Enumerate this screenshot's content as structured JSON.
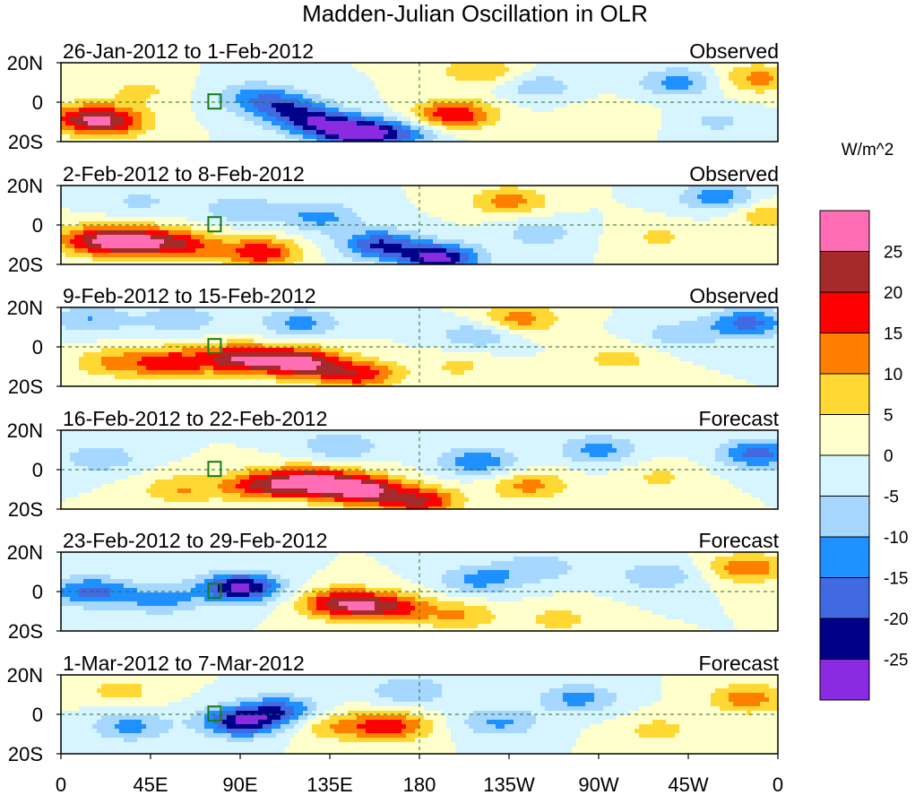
{
  "chart_data": {
    "type": "heatmap",
    "title": "Madden-Julian Oscillation in OLR",
    "xlabel": "",
    "ylabel": "",
    "x_ticks": [
      "0",
      "45E",
      "90E",
      "135E",
      "180",
      "135W",
      "90W",
      "45W",
      "0"
    ],
    "x_tick_values": [
      0,
      45,
      90,
      135,
      180,
      225,
      270,
      315,
      360
    ],
    "y_ticks": [
      "20N",
      "0",
      "20S"
    ],
    "y_tick_values": [
      20,
      0,
      -20
    ],
    "xlim": [
      0,
      360
    ],
    "ylim": [
      -20,
      20
    ],
    "colorbar": {
      "unit": "W/m^2",
      "levels": [
        25,
        20,
        15,
        10,
        5,
        0,
        -5,
        -10,
        -15,
        -20,
        -25
      ],
      "colors": [
        "#ff6eb4",
        "#a52a2a",
        "#ff0000",
        "#ff7f00",
        "#ffd833",
        "#ffffcc",
        "#d6f5ff",
        "#a6d7ff",
        "#1e90ff",
        "#4169e1",
        "#00008b",
        "#8a2be2"
      ]
    },
    "panels": [
      {
        "period": "26-Jan-2012 to 1-Feb-2012",
        "kind": "Observed",
        "features": [
          {
            "lon": 10,
            "lat": -8,
            "value": 14
          },
          {
            "lon": 25,
            "lat": -10,
            "value": 18
          },
          {
            "lon": 40,
            "lat": 6,
            "value": 6
          },
          {
            "lon": 95,
            "lat": 4,
            "value": -8
          },
          {
            "lon": 110,
            "lat": -2,
            "value": -16
          },
          {
            "lon": 128,
            "lat": -10,
            "value": -20
          },
          {
            "lon": 150,
            "lat": -16,
            "value": -27
          },
          {
            "lon": 175,
            "lat": -15,
            "value": -12
          },
          {
            "lon": 190,
            "lat": -8,
            "value": 9
          },
          {
            "lon": 200,
            "lat": -6,
            "value": 13
          },
          {
            "lon": 210,
            "lat": 16,
            "value": 10
          },
          {
            "lon": 240,
            "lat": 8,
            "value": -8
          },
          {
            "lon": 275,
            "lat": -8,
            "value": 5
          },
          {
            "lon": 310,
            "lat": 10,
            "value": -12
          },
          {
            "lon": 350,
            "lat": 12,
            "value": 12
          },
          {
            "lon": 330,
            "lat": -10,
            "value": -6
          }
        ]
      },
      {
        "period": "2-Feb-2012 to 8-Feb-2012",
        "kind": "Observed",
        "features": [
          {
            "lon": 15,
            "lat": -8,
            "value": 16
          },
          {
            "lon": 35,
            "lat": -8,
            "value": 22
          },
          {
            "lon": 60,
            "lat": -10,
            "value": 17
          },
          {
            "lon": 100,
            "lat": -14,
            "value": 19
          },
          {
            "lon": 40,
            "lat": 12,
            "value": -6
          },
          {
            "lon": 90,
            "lat": 8,
            "value": -9
          },
          {
            "lon": 130,
            "lat": 4,
            "value": -12
          },
          {
            "lon": 160,
            "lat": -10,
            "value": -20
          },
          {
            "lon": 190,
            "lat": -17,
            "value": -27
          },
          {
            "lon": 225,
            "lat": 12,
            "value": 12
          },
          {
            "lon": 240,
            "lat": -4,
            "value": -8
          },
          {
            "lon": 300,
            "lat": -6,
            "value": 6
          },
          {
            "lon": 330,
            "lat": 14,
            "value": -13
          },
          {
            "lon": 355,
            "lat": 5,
            "value": 9
          }
        ]
      },
      {
        "period": "9-Feb-2012 to 15-Feb-2012",
        "kind": "Observed",
        "features": [
          {
            "lon": 25,
            "lat": -8,
            "value": 10
          },
          {
            "lon": 55,
            "lat": -8,
            "value": 18
          },
          {
            "lon": 90,
            "lat": -6,
            "value": 23
          },
          {
            "lon": 120,
            "lat": -8,
            "value": 27
          },
          {
            "lon": 150,
            "lat": -14,
            "value": 18
          },
          {
            "lon": 15,
            "lat": 14,
            "value": -10
          },
          {
            "lon": 60,
            "lat": 14,
            "value": -9
          },
          {
            "lon": 120,
            "lat": 12,
            "value": -12
          },
          {
            "lon": 210,
            "lat": 6,
            "value": -10
          },
          {
            "lon": 230,
            "lat": 14,
            "value": 13
          },
          {
            "lon": 200,
            "lat": -10,
            "value": 6
          },
          {
            "lon": 280,
            "lat": -6,
            "value": 7
          },
          {
            "lon": 310,
            "lat": 6,
            "value": -8
          },
          {
            "lon": 345,
            "lat": 12,
            "value": -17
          }
        ]
      },
      {
        "period": "16-Feb-2012 to 22-Feb-2012",
        "kind": "Forecast",
        "features": [
          {
            "lon": 60,
            "lat": -10,
            "value": 10
          },
          {
            "lon": 100,
            "lat": -8,
            "value": 18
          },
          {
            "lon": 125,
            "lat": -6,
            "value": 24
          },
          {
            "lon": 150,
            "lat": -10,
            "value": 27
          },
          {
            "lon": 180,
            "lat": -16,
            "value": 20
          },
          {
            "lon": 20,
            "lat": 6,
            "value": -9
          },
          {
            "lon": 140,
            "lat": 12,
            "value": -10
          },
          {
            "lon": 210,
            "lat": 4,
            "value": -14
          },
          {
            "lon": 235,
            "lat": -8,
            "value": 12
          },
          {
            "lon": 270,
            "lat": 10,
            "value": -12
          },
          {
            "lon": 300,
            "lat": -4,
            "value": 6
          },
          {
            "lon": 350,
            "lat": 8,
            "value": -17
          }
        ]
      },
      {
        "period": "23-Feb-2012 to 29-Feb-2012",
        "kind": "Forecast",
        "features": [
          {
            "lon": 15,
            "lat": 0,
            "value": -17
          },
          {
            "lon": 50,
            "lat": -4,
            "value": -12
          },
          {
            "lon": 90,
            "lat": 2,
            "value": -27
          },
          {
            "lon": 140,
            "lat": -6,
            "value": 22
          },
          {
            "lon": 165,
            "lat": -8,
            "value": 18
          },
          {
            "lon": 200,
            "lat": -12,
            "value": 10
          },
          {
            "lon": 250,
            "lat": -14,
            "value": 7
          },
          {
            "lon": 210,
            "lat": 6,
            "value": -12
          },
          {
            "lon": 240,
            "lat": 12,
            "value": -9
          },
          {
            "lon": 300,
            "lat": 8,
            "value": -10
          },
          {
            "lon": 345,
            "lat": 12,
            "value": 14
          }
        ]
      },
      {
        "period": "1-Mar-2012 to 7-Mar-2012",
        "kind": "Forecast",
        "features": [
          {
            "lon": 35,
            "lat": -6,
            "value": -12
          },
          {
            "lon": 90,
            "lat": -4,
            "value": -23
          },
          {
            "lon": 110,
            "lat": 2,
            "value": -17
          },
          {
            "lon": 135,
            "lat": -6,
            "value": 9
          },
          {
            "lon": 165,
            "lat": -6,
            "value": 18
          },
          {
            "lon": 30,
            "lat": 12,
            "value": 7
          },
          {
            "lon": 175,
            "lat": 12,
            "value": -10
          },
          {
            "lon": 220,
            "lat": -4,
            "value": -11
          },
          {
            "lon": 260,
            "lat": 8,
            "value": -12
          },
          {
            "lon": 300,
            "lat": -8,
            "value": 7
          },
          {
            "lon": 345,
            "lat": 8,
            "value": 13
          }
        ]
      }
    ]
  }
}
